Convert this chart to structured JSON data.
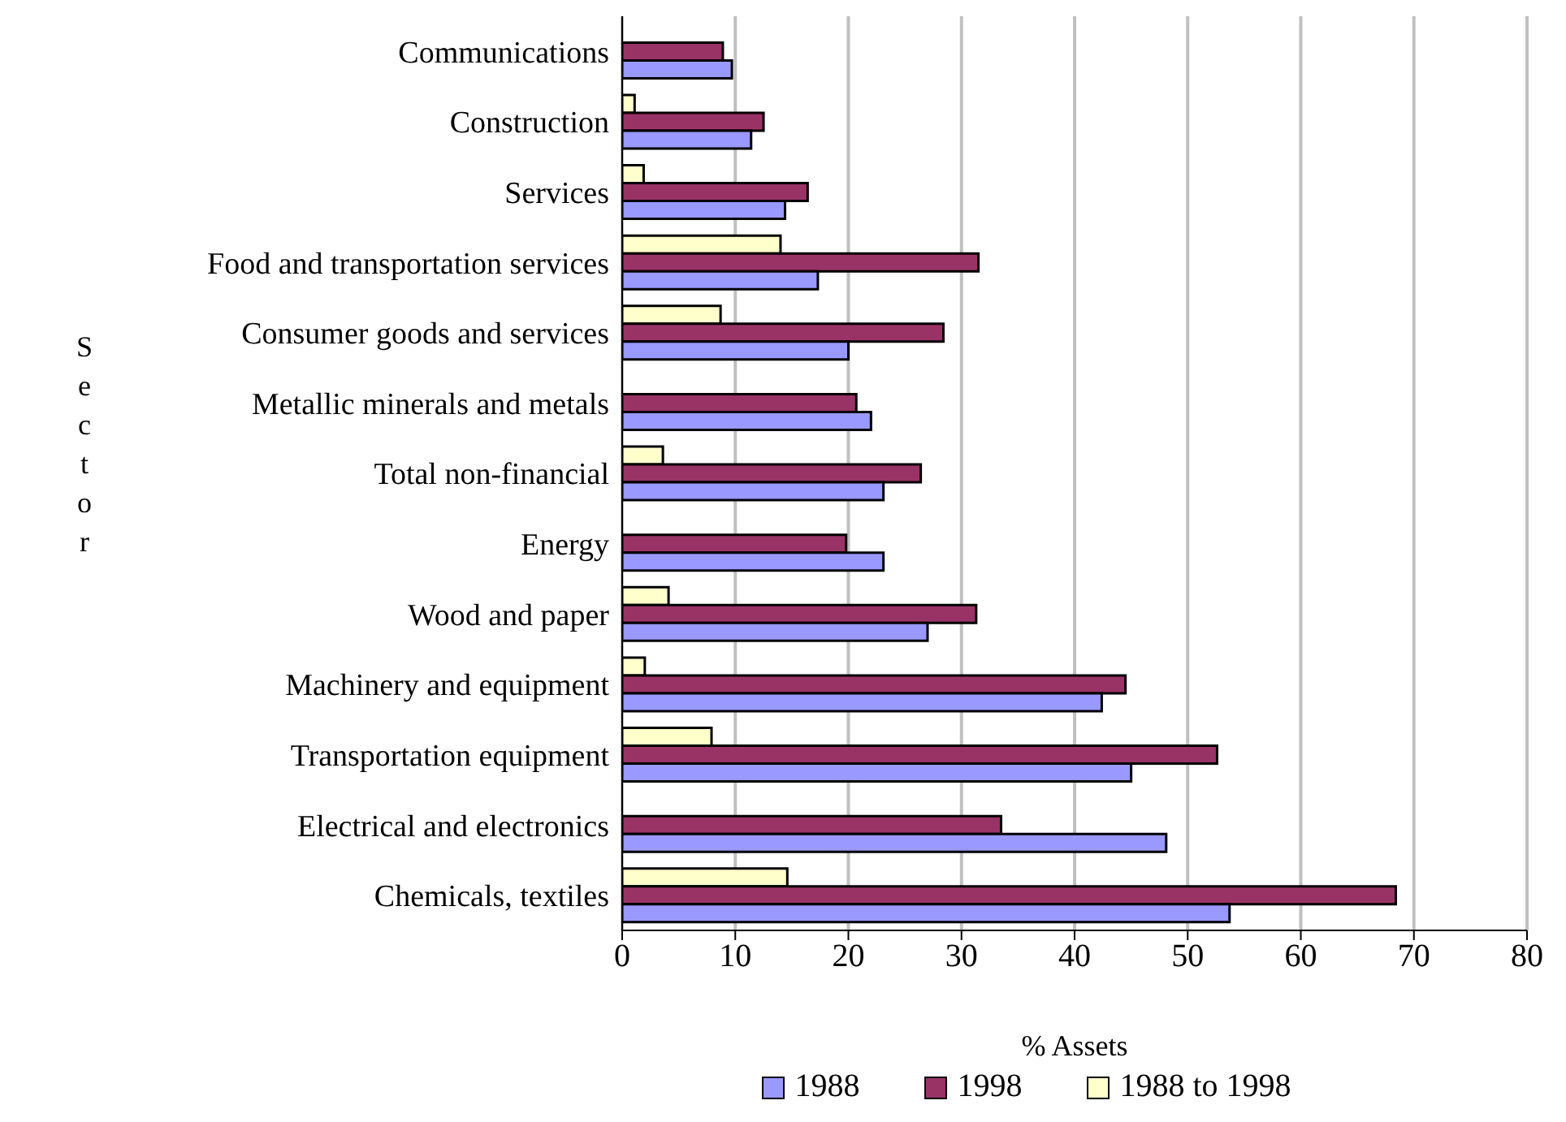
{
  "chart_data": {
    "type": "bar",
    "orientation": "horizontal",
    "xlabel": "% Assets",
    "ylabel": "Sector",
    "categories": [
      "Communications",
      "Construction",
      "Services",
      "Food and transportation services",
      "Consumer goods and services",
      "Metallic minerals and metals",
      "Total non-financial",
      "Energy",
      "Wood and paper",
      "Machinery and equipment",
      "Transportation equipment",
      "Electrical and electronics",
      "Chemicals, textiles"
    ],
    "series": [
      {
        "name": "1988",
        "color": "#9999ff",
        "values": [
          9.7,
          11.4,
          14.4,
          17.3,
          20.0,
          22.0,
          23.1,
          23.1,
          27.0,
          42.4,
          45.0,
          48.1,
          53.7
        ]
      },
      {
        "name": "1998",
        "color": "#993366",
        "values": [
          8.9,
          12.5,
          16.4,
          31.5,
          28.4,
          20.7,
          26.4,
          19.8,
          31.3,
          44.5,
          52.6,
          33.5,
          68.4
        ]
      },
      {
        "name": "1988 to 1998",
        "color": "#ffffcc",
        "values": [
          null,
          1.1,
          1.9,
          14.0,
          8.7,
          null,
          3.6,
          null,
          4.1,
          2.0,
          7.9,
          null,
          14.6
        ]
      }
    ],
    "xlim": [
      0,
      80
    ],
    "xticks": [
      0,
      10,
      20,
      30,
      40,
      50,
      60,
      70,
      80
    ],
    "grid": "x",
    "legend": "bottom"
  }
}
